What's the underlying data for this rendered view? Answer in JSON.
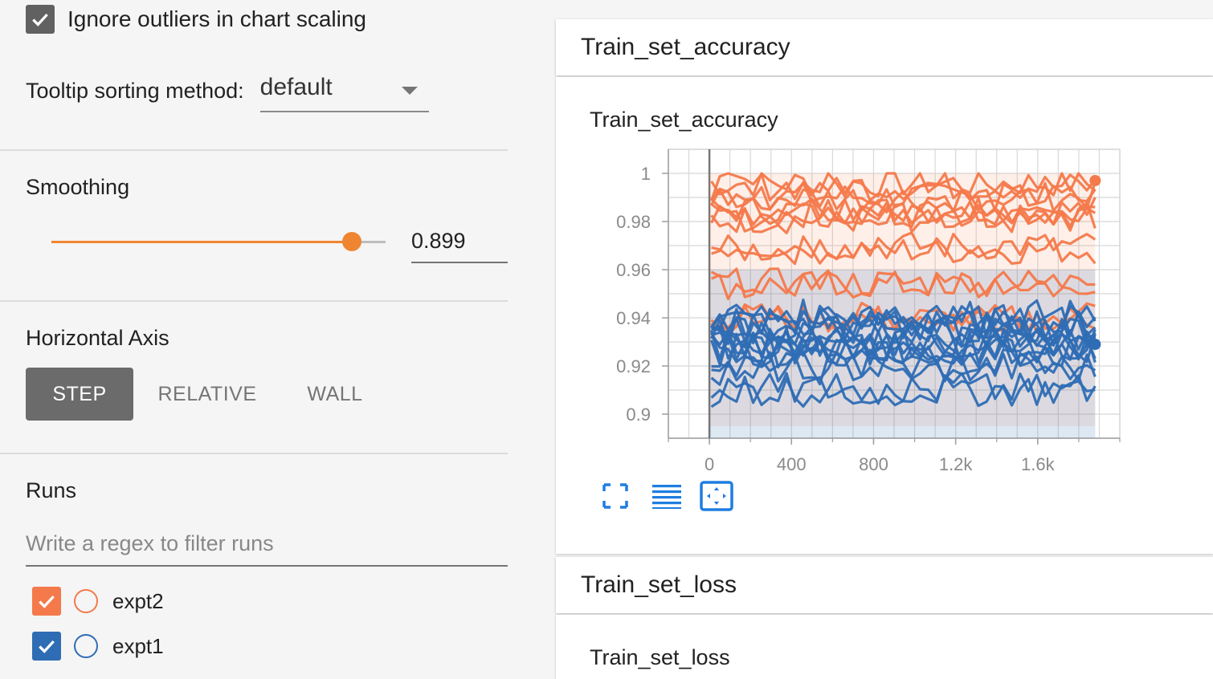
{
  "sidebar": {
    "outlier_label": "Ignore outliers in chart scaling",
    "tooltip_label": "Tooltip sorting method:",
    "tooltip_value": "default",
    "smoothing_title": "Smoothing",
    "smoothing_value": "0.899",
    "smoothing_fraction": 0.899,
    "axis_title": "Horizontal Axis",
    "axis_buttons": [
      "STEP",
      "RELATIVE",
      "WALL"
    ],
    "runs_title": "Runs",
    "regex_placeholder": "Write a regex to filter runs",
    "runs": [
      {
        "name": "expt2",
        "color": "#f4794b"
      },
      {
        "name": "expt1",
        "color": "#2e6db4"
      }
    ]
  },
  "cards": [
    {
      "header": "Train_set_accuracy",
      "chart_title": "Train_set_accuracy"
    },
    {
      "header": "Train_set_loss",
      "chart_title": "Train_set_loss"
    }
  ],
  "colors": {
    "accent": "#ef8531",
    "expt2": "#f4794b",
    "expt1": "#2e6db4",
    "button_active": "#6b6b6b"
  },
  "toolbar_icons": [
    "fullscreen-icon",
    "log-scale-icon",
    "fit-domain-icon"
  ],
  "chart_data": {
    "type": "line",
    "x_tick_labels": [
      "0",
      "400",
      "800",
      "1.2k",
      "1.6k"
    ],
    "y_tick_labels": [
      "0.9",
      "0.92",
      "0.94",
      "0.96",
      "0.98",
      "1"
    ],
    "xlim": [
      -200,
      2000
    ],
    "ylim": [
      0.89,
      1.01
    ],
    "grid": true,
    "series": [
      {
        "name": "expt2",
        "end_value": 0.997,
        "x_end": 1880,
        "band": [
          0.895,
          1.0
        ],
        "color": "#f4794b"
      },
      {
        "name": "expt1",
        "end_value": 0.929,
        "x_end": 1880,
        "band": [
          0.89,
          0.96
        ],
        "color": "#2e6db4"
      }
    ]
  }
}
